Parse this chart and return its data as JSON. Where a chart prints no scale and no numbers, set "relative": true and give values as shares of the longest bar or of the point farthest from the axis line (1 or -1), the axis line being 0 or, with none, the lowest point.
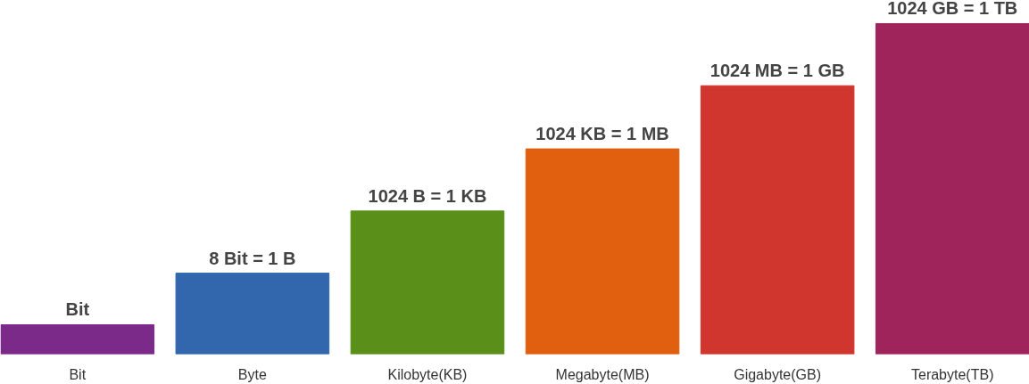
{
  "chart_data": {
    "type": "bar",
    "relative": true,
    "categories": [
      "Bit",
      "Byte",
      "Kilobyte(KB)",
      "Megabyte(MB)",
      "Gigabyte(GB)",
      "Terabyte(TB)"
    ],
    "values": [
      0.089,
      0.245,
      0.433,
      0.621,
      0.812,
      1.0
    ],
    "colors": [
      "#7b2a8a",
      "#3367ad",
      "#5a8f1a",
      "#e06010",
      "#d0352e",
      "#a0245c"
    ],
    "annotations": [
      {
        "text": "Bit",
        "x": "Bit",
        "y": 0.089
      },
      {
        "text": "8 Bit = 1 B",
        "x": "Byte",
        "y": 0.245
      },
      {
        "text": "1024 B = 1 KB",
        "x": "Kilobyte(KB)",
        "y": 0.433
      },
      {
        "text": "1024 KB = 1 MB",
        "x": "Megabyte(MB)",
        "y": 0.621
      },
      {
        "text": "1024 MB = 1 GB",
        "x": "Gigabyte(GB)",
        "y": 0.812
      },
      {
        "text": "1024 GB = 1 TB",
        "x": "Terabyte(TB)",
        "y": 1.0
      }
    ],
    "grid": false
  }
}
